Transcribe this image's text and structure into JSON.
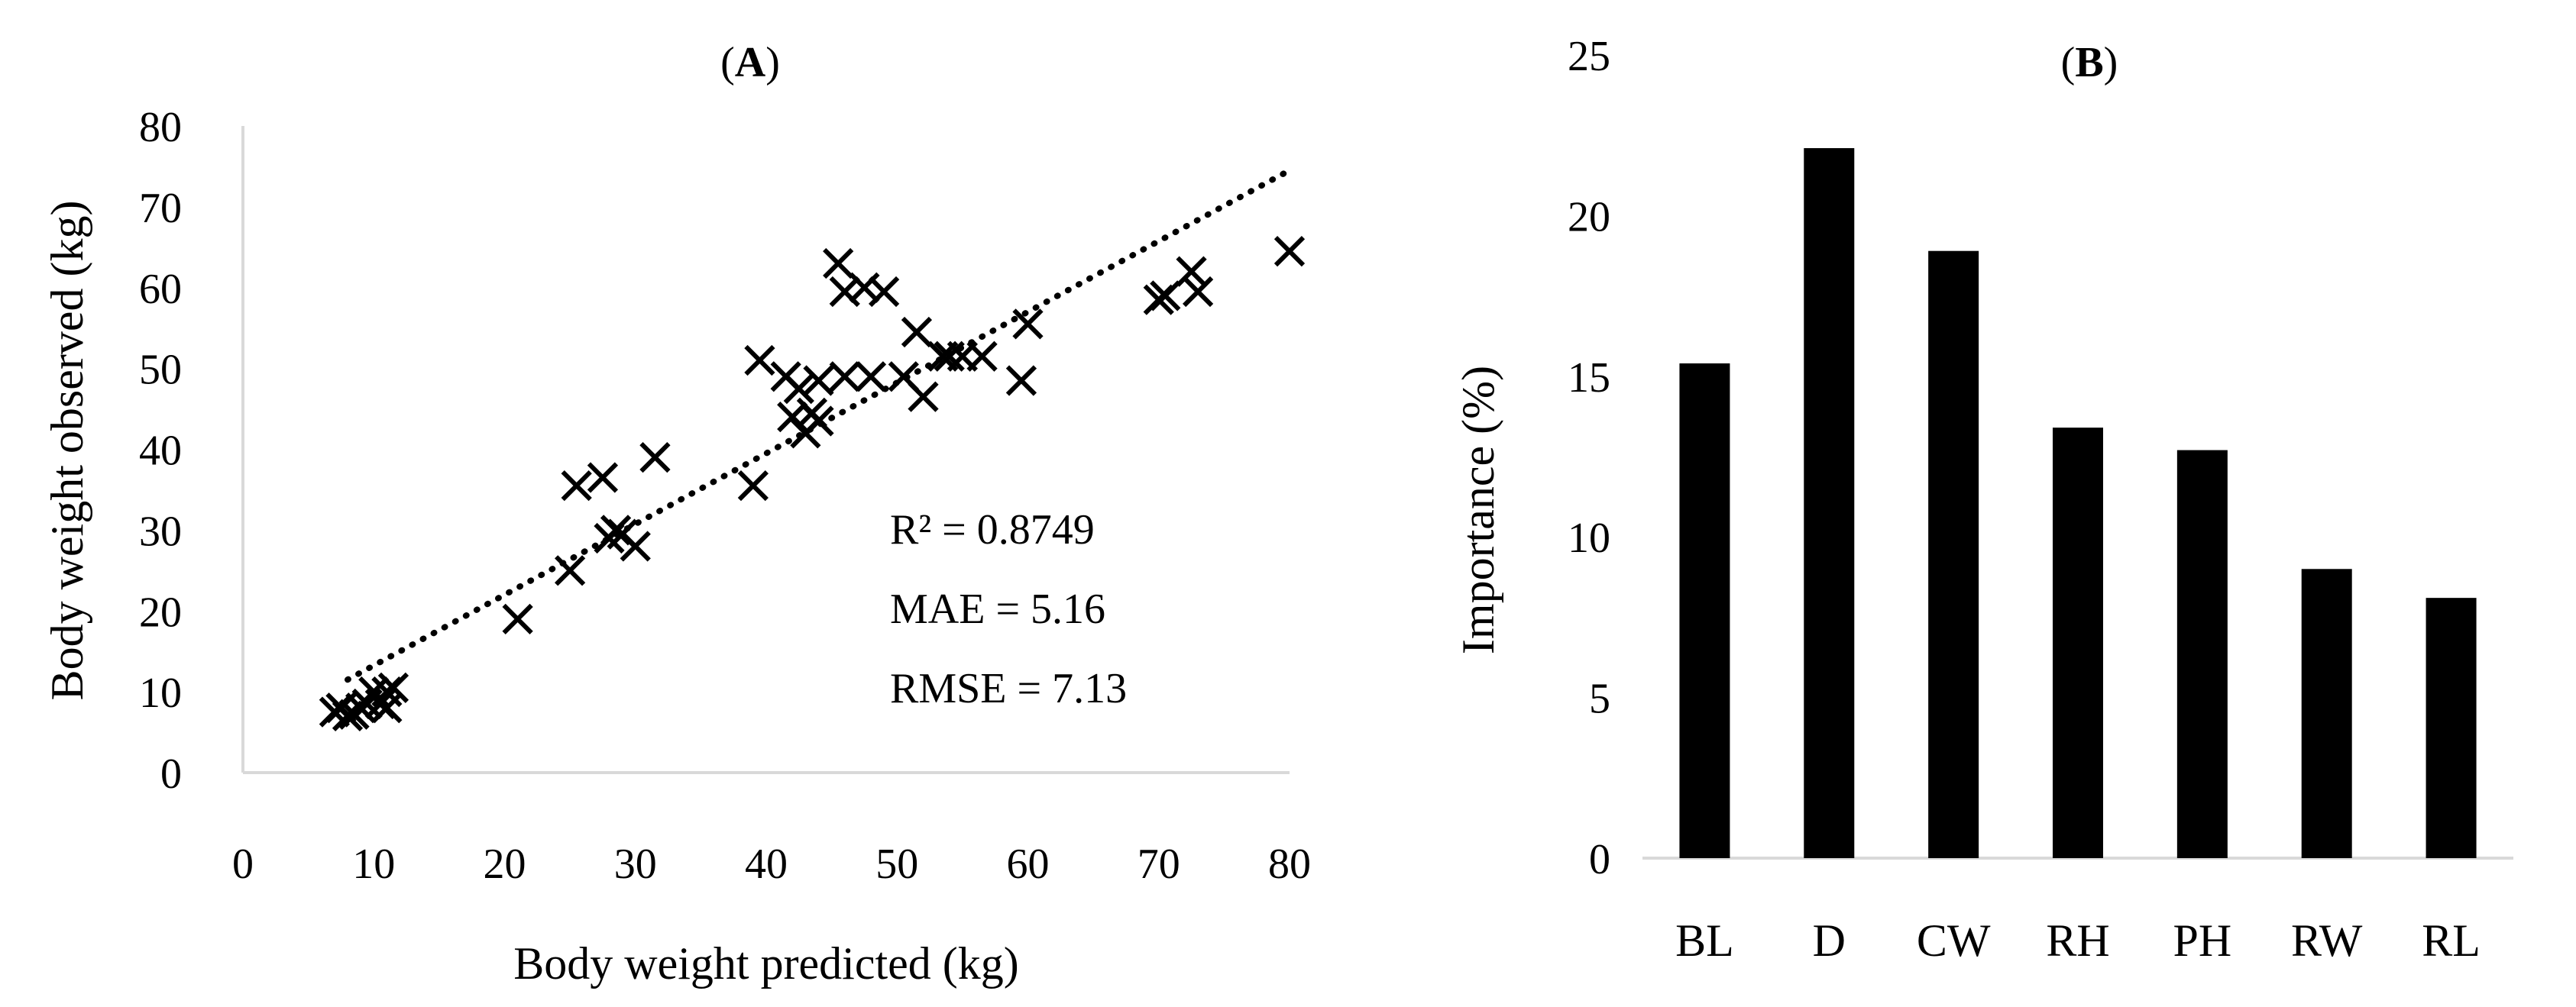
{
  "chart_data": [
    {
      "type": "scatter",
      "title_letter": "A",
      "title_open": "(",
      "title_close": ")",
      "xlabel": "Body weight predicted (kg)",
      "ylabel": "Body weight observed  (kg)",
      "xlim": [
        0,
        80
      ],
      "ylim": [
        0,
        80
      ],
      "xticks": [
        "0",
        "10",
        "20",
        "30",
        "40",
        "50",
        "60",
        "70",
        "80"
      ],
      "yticks": [
        "0",
        "10",
        "20",
        "30",
        "40",
        "50",
        "60",
        "70",
        "80"
      ],
      "marker": "x",
      "trendline": {
        "style": "dotted",
        "x": [
          8,
          80
        ],
        "y": [
          11.5,
          74.5
        ]
      },
      "annotations": [
        "R² = 0.8749",
        "MAE = 5.16",
        "RMSE = 7.13"
      ],
      "points": [
        [
          7,
          7.5
        ],
        [
          7.5,
          8
        ],
        [
          8,
          7
        ],
        [
          8.5,
          7.2
        ],
        [
          9,
          8
        ],
        [
          9.5,
          8.5
        ],
        [
          10,
          10
        ],
        [
          10.5,
          8.5
        ],
        [
          11,
          8
        ],
        [
          11,
          10
        ],
        [
          11.5,
          10.5
        ],
        [
          21,
          19
        ],
        [
          25,
          25
        ],
        [
          25.5,
          35.5
        ],
        [
          27.5,
          36.5
        ],
        [
          28,
          29
        ],
        [
          28.5,
          30
        ],
        [
          29,
          29.5
        ],
        [
          30,
          28
        ],
        [
          31.5,
          39
        ],
        [
          39,
          35.5
        ],
        [
          39.5,
          51
        ],
        [
          41.5,
          49
        ],
        [
          42,
          44
        ],
        [
          42.5,
          47.5
        ],
        [
          43,
          42
        ],
        [
          43.5,
          44.5
        ],
        [
          44,
          43.5
        ],
        [
          44,
          48.5
        ],
        [
          45.5,
          63
        ],
        [
          46,
          49
        ],
        [
          46,
          59.5
        ],
        [
          47.5,
          60
        ],
        [
          48,
          49
        ],
        [
          49,
          59.5
        ],
        [
          50.5,
          49
        ],
        [
          51.5,
          54.5
        ],
        [
          52,
          46.5
        ],
        [
          53.5,
          51.5
        ],
        [
          54,
          51.5
        ],
        [
          55,
          51.5
        ],
        [
          56.5,
          51.5
        ],
        [
          59.5,
          48.5
        ],
        [
          60,
          55.5
        ],
        [
          70,
          58.5
        ],
        [
          70.5,
          59
        ],
        [
          72.5,
          62
        ],
        [
          73,
          59.5
        ],
        [
          80,
          64.5
        ]
      ]
    },
    {
      "type": "bar",
      "title_letter": "B",
      "title_open": "(",
      "title_close": ")",
      "xlabel": "",
      "ylabel": "Importance (%)",
      "ylim": [
        0,
        25
      ],
      "yticks": [
        "0",
        "5",
        "10",
        "15",
        "20",
        "25"
      ],
      "categories": [
        "BL",
        "D",
        "CW",
        "RH",
        "PH",
        "RW",
        "RL"
      ],
      "values": [
        15.4,
        22.1,
        18.9,
        13.4,
        12.7,
        9.0,
        8.1
      ],
      "bar_color": "#000000"
    }
  ]
}
